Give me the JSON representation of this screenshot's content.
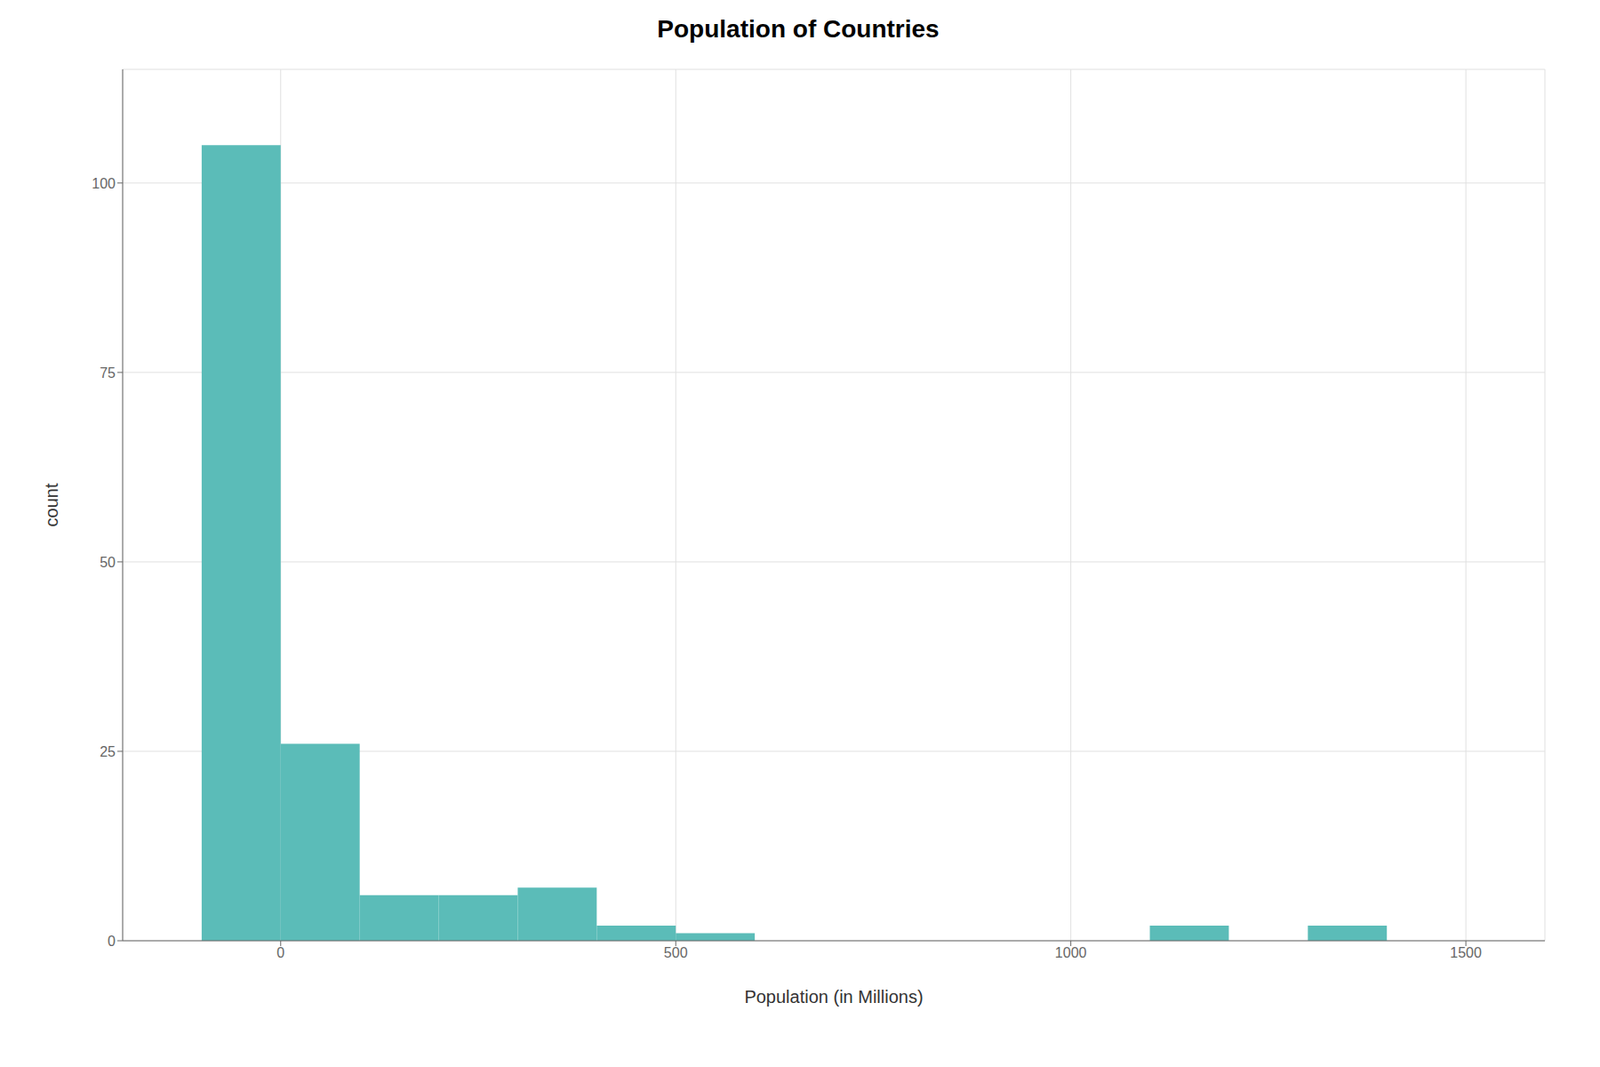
{
  "chart_data": {
    "type": "histogram",
    "title": "Population of Countries",
    "xlabel": "Population (in Millions)",
    "ylabel": "count",
    "bins": [
      -100,
      0,
      100,
      200,
      300,
      400,
      500,
      600,
      700,
      800,
      900,
      1000,
      1100,
      1200,
      1300,
      1400,
      1500
    ],
    "values": [
      105,
      26,
      6,
      6,
      7,
      2,
      1,
      0,
      0,
      0,
      0,
      0,
      2,
      0,
      2,
      0
    ],
    "color": "#5bbcb8",
    "xlim": [
      -200,
      1600
    ],
    "ylim": [
      0,
      115
    ],
    "xticks": [
      0,
      500,
      1000,
      1500
    ],
    "yticks": [
      0,
      25,
      50,
      75,
      100
    ],
    "grid": true
  }
}
